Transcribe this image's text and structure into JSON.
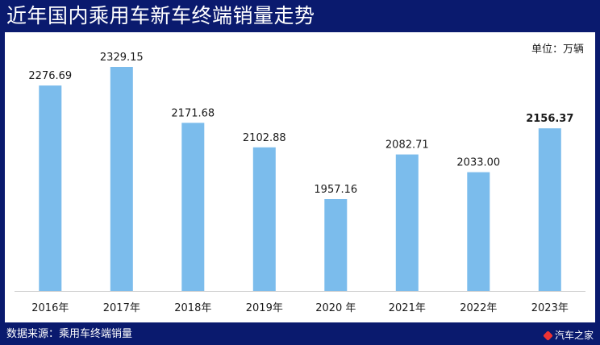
{
  "title": "近年国内乘用车新车终端销量走势",
  "unit": "单位：万辆",
  "source": "数据来源：乘用车终端销量",
  "brand": "汽车之家",
  "colors": {
    "bar": "#7bbcec",
    "background": "#0a1a6e",
    "axis": "#d0d0d0"
  },
  "chart_data": {
    "type": "bar",
    "categories": [
      "2016年",
      "2017年",
      "2018年",
      "2019年",
      "2020 年",
      "2021年",
      "2022年",
      "2023年"
    ],
    "values": [
      2276.69,
      2329.15,
      2171.68,
      2102.88,
      1957.16,
      2082.71,
      2033.0,
      2156.37
    ],
    "labels": [
      "2276.69",
      "2329.15",
      "2171.68",
      "2102.88",
      "1957.16",
      "2082.71",
      "2033.00",
      "2156.37"
    ],
    "highlight_index": 7,
    "legend": "none",
    "grid": false
  }
}
